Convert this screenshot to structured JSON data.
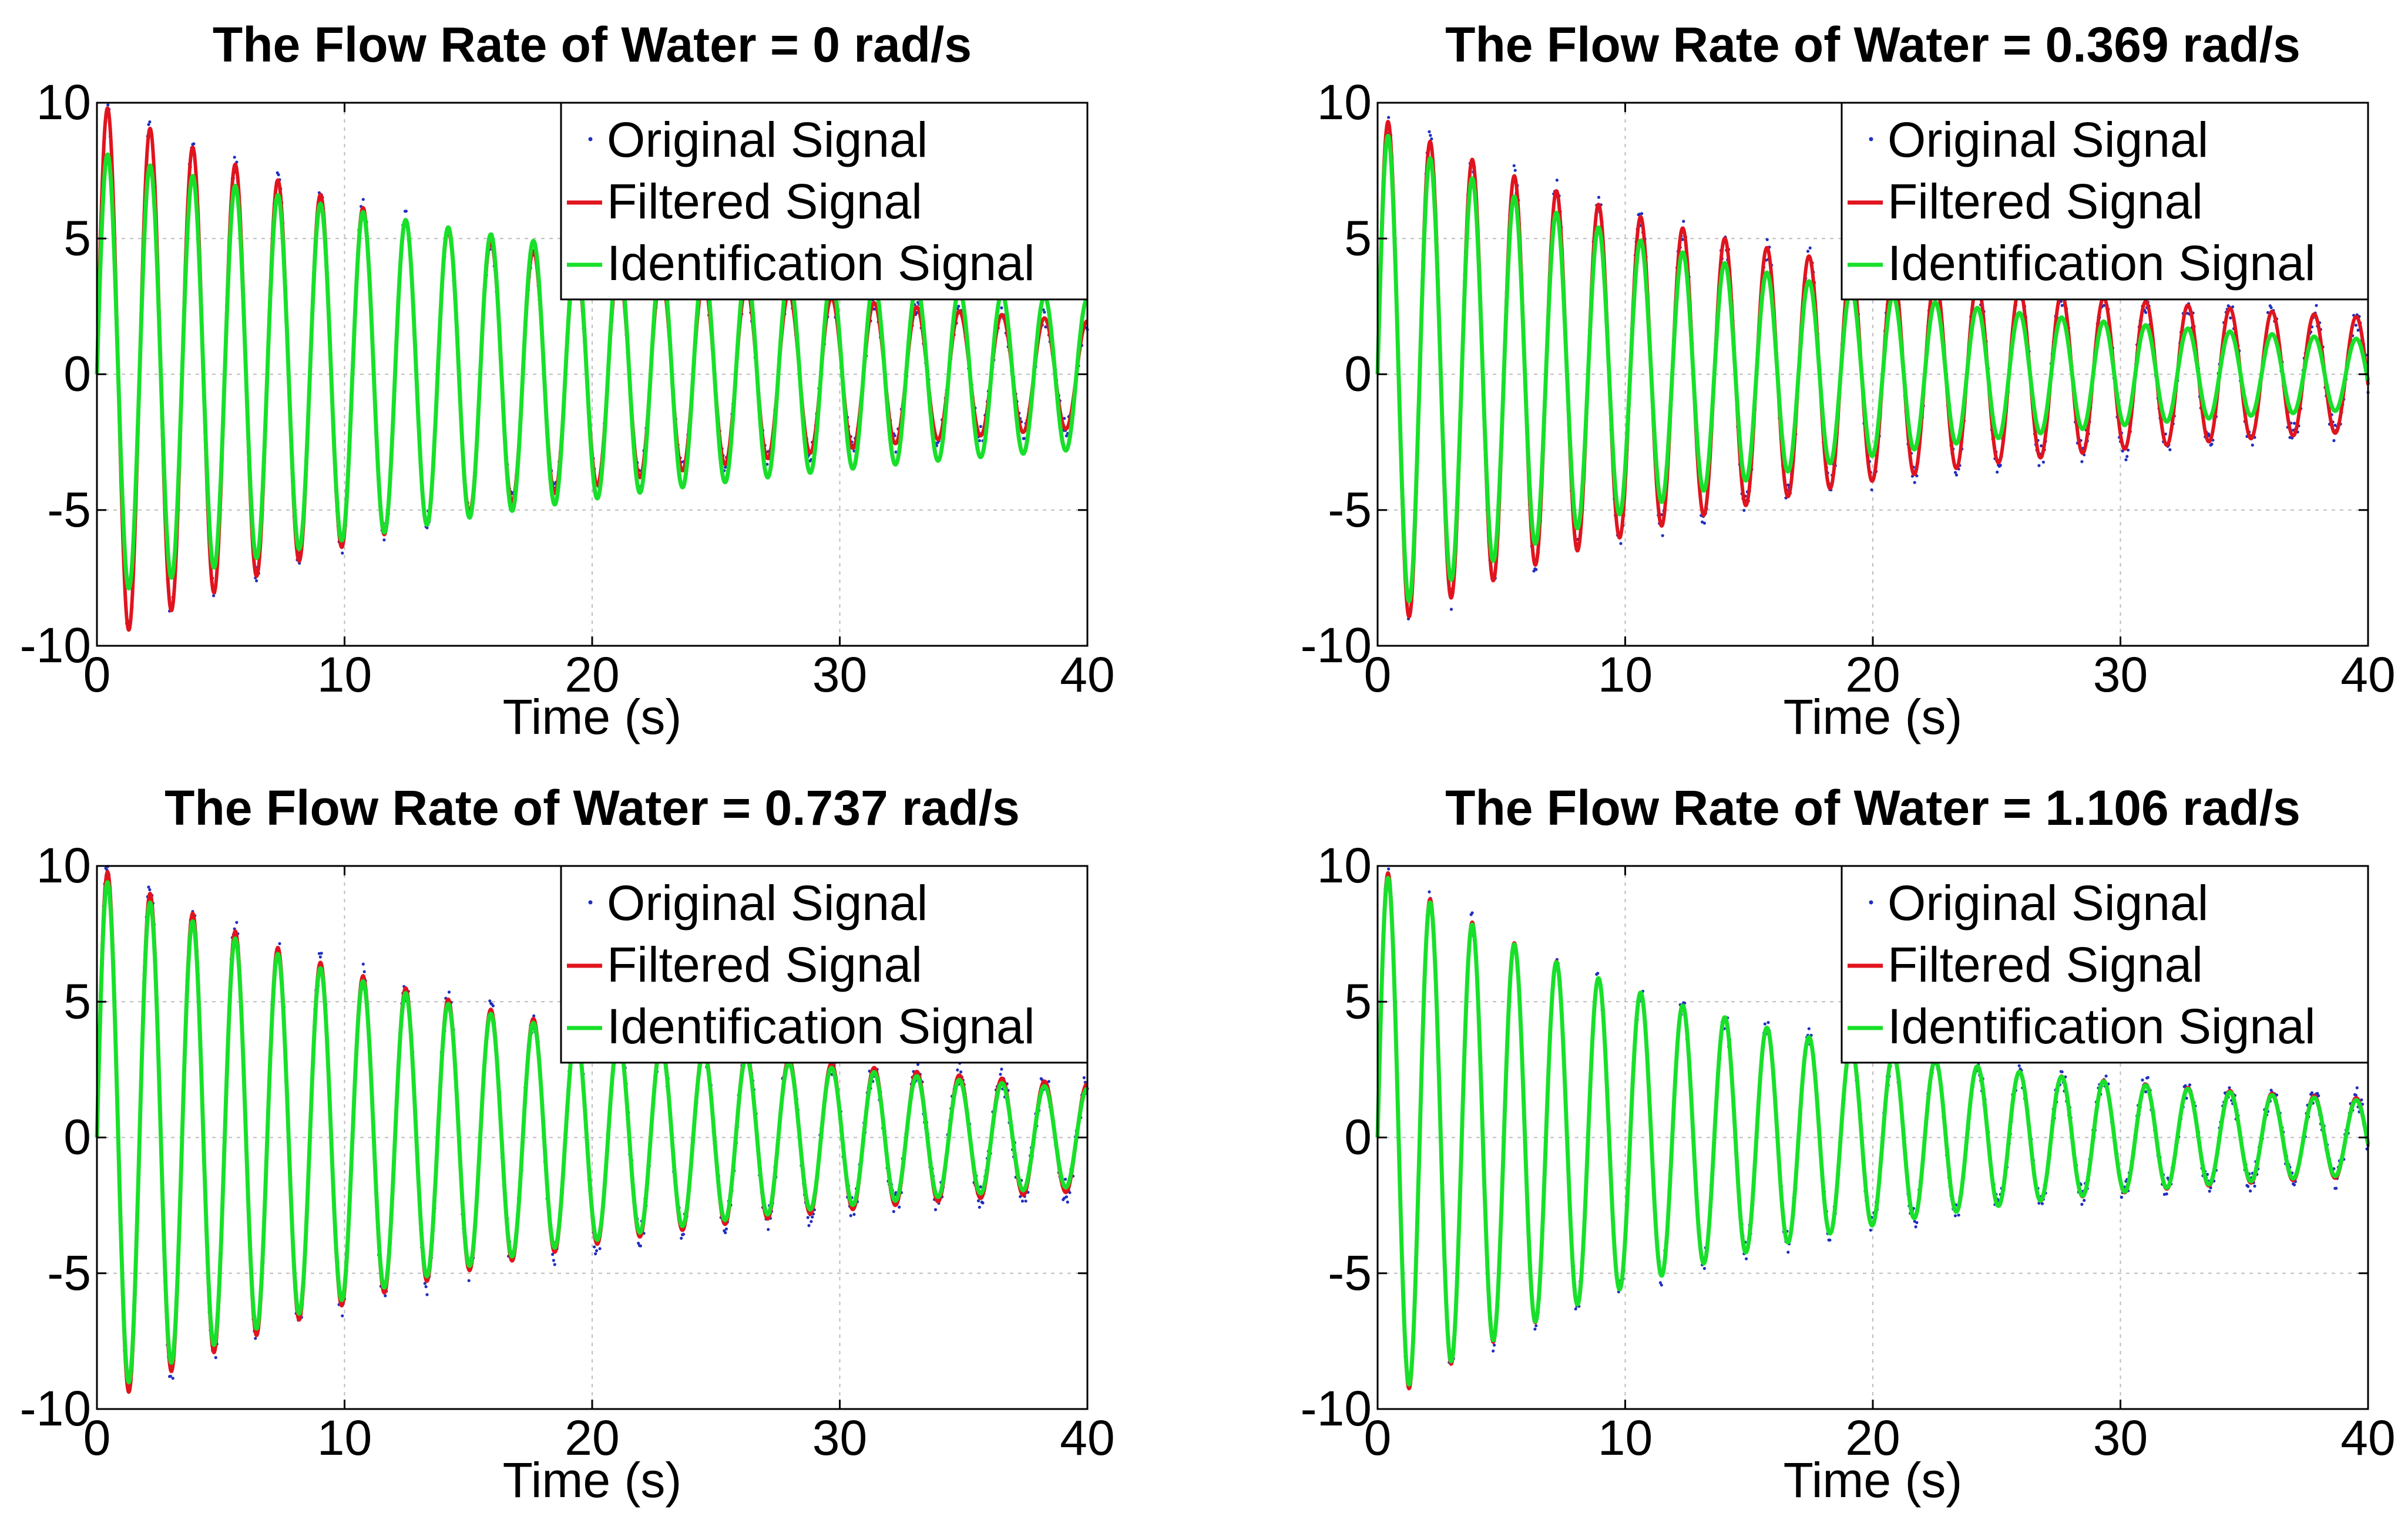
{
  "colors": {
    "original": "#1f2fbf",
    "filtered": "#e0141e",
    "identification": "#18e02a"
  },
  "chart_data": [
    {
      "type": "line",
      "title": "The Flow Rate of Water = 0 rad/s",
      "xlabel": "Time (s)",
      "ylabel": "",
      "xlim": [
        0,
        40
      ],
      "ylim": [
        -10,
        10
      ],
      "xticks": [
        0,
        10,
        20,
        30,
        40
      ],
      "yticks": [
        -10,
        -5,
        0,
        5,
        10
      ],
      "grid": true,
      "legend": {
        "position": "top-right",
        "entries": [
          "Original Signal",
          "Filtered Signal",
          "Identification Signal"
        ]
      },
      "series": [
        {
          "name": "Original Signal",
          "style": "dots",
          "model": {
            "amp0": 10.0,
            "tau": 20.0,
            "period": 1.72,
            "ampFinal": 0.7,
            "noise": 0.35
          }
        },
        {
          "name": "Filtered Signal",
          "style": "line",
          "model": {
            "amp0": 10.0,
            "tau": 20.0,
            "period": 1.72,
            "ampFinal": 0.7,
            "noise": 0
          }
        },
        {
          "name": "Identification Signal",
          "style": "line",
          "model": {
            "amp0": 8.2,
            "tau": 30.0,
            "period": 1.72,
            "ampFinal": 0.8,
            "noise": 0
          }
        }
      ]
    },
    {
      "type": "line",
      "title": "The Flow Rate of Water = 0.369 rad/s",
      "xlabel": "Time (s)",
      "ylabel": "",
      "xlim": [
        0,
        40
      ],
      "ylim": [
        -10,
        10
      ],
      "xticks": [
        0,
        10,
        20,
        30,
        40
      ],
      "yticks": [
        -10,
        -5,
        0,
        5,
        10
      ],
      "grid": true,
      "legend": {
        "position": "top-right",
        "entries": [
          "Original Signal",
          "Filtered Signal",
          "Identification Signal"
        ]
      },
      "series": [
        {
          "name": "Original Signal",
          "style": "dots",
          "model": {
            "amp0": 9.5,
            "tau": 18.0,
            "period": 1.7,
            "ampFinal": 1.2,
            "noise": 0.45
          }
        },
        {
          "name": "Filtered Signal",
          "style": "line",
          "model": {
            "amp0": 9.5,
            "tau": 18.0,
            "period": 1.7,
            "ampFinal": 1.2,
            "noise": 0
          }
        },
        {
          "name": "Identification Signal",
          "style": "line",
          "model": {
            "amp0": 9.0,
            "tau": 16.0,
            "period": 1.7,
            "ampFinal": 0.6,
            "noise": 0
          }
        }
      ]
    },
    {
      "type": "line",
      "title": "The Flow Rate of Water = 0.737 rad/s",
      "xlabel": "Time (s)",
      "ylabel": "",
      "xlim": [
        0,
        40
      ],
      "ylim": [
        -10,
        10
      ],
      "xticks": [
        0,
        10,
        20,
        30,
        40
      ],
      "yticks": [
        -10,
        -5,
        0,
        5,
        10
      ],
      "grid": true,
      "legend": {
        "position": "top-right",
        "entries": [
          "Original Signal",
          "Filtered Signal",
          "Identification Signal"
        ]
      },
      "series": [
        {
          "name": "Original Signal",
          "style": "dots",
          "model": {
            "amp0": 10.0,
            "tau": 18.0,
            "period": 1.72,
            "ampFinal": 1.0,
            "noise": 0.5
          }
        },
        {
          "name": "Filtered Signal",
          "style": "line",
          "model": {
            "amp0": 10.0,
            "tau": 18.0,
            "period": 1.72,
            "ampFinal": 1.0,
            "noise": 0
          }
        },
        {
          "name": "Identification Signal",
          "style": "line",
          "model": {
            "amp0": 9.6,
            "tau": 19.0,
            "period": 1.72,
            "ampFinal": 0.7,
            "noise": 0
          }
        }
      ]
    },
    {
      "type": "line",
      "title": "The Flow Rate of Water = 1.106 rad/s",
      "xlabel": "Time (s)",
      "ylabel": "",
      "xlim": [
        0,
        40
      ],
      "ylim": [
        -10,
        10
      ],
      "xticks": [
        0,
        10,
        20,
        30,
        40
      ],
      "yticks": [
        -10,
        -5,
        0,
        5,
        10
      ],
      "grid": true,
      "legend": {
        "position": "top-right",
        "entries": [
          "Original Signal",
          "Filtered Signal",
          "Identification Signal"
        ]
      },
      "series": [
        {
          "name": "Original Signal",
          "style": "dots",
          "model": {
            "amp0": 10.0,
            "tau": 15.0,
            "period": 1.7,
            "ampFinal": 0.8,
            "noise": 0.4
          }
        },
        {
          "name": "Filtered Signal",
          "style": "line",
          "model": {
            "amp0": 10.0,
            "tau": 15.0,
            "period": 1.7,
            "ampFinal": 0.8,
            "noise": 0
          }
        },
        {
          "name": "Identification Signal",
          "style": "line",
          "model": {
            "amp0": 9.8,
            "tau": 16.0,
            "period": 1.7,
            "ampFinal": 0.6,
            "noise": 0
          }
        }
      ]
    }
  ]
}
